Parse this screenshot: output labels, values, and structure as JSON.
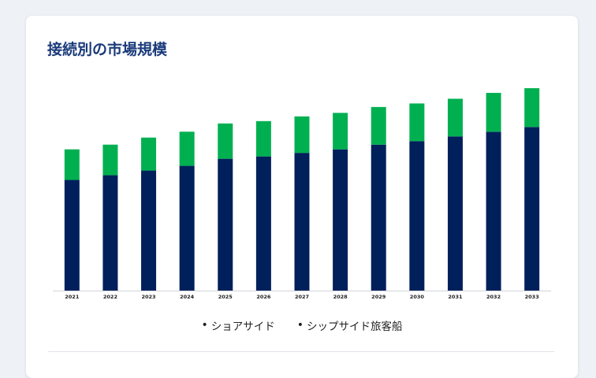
{
  "title": "接続別の市場規模",
  "colors": {
    "shore_side": "#00205b",
    "ship_side": "#00b050",
    "title": "#1a3a7a"
  },
  "chart_data": {
    "type": "bar",
    "stacked": true,
    "categories": [
      "2021",
      "2022",
      "2023",
      "2024",
      "2025",
      "2026",
      "2027",
      "2028",
      "2029",
      "2030",
      "2031",
      "2032",
      "2033"
    ],
    "series": [
      {
        "name": "ショアサイド",
        "values": [
          4.7,
          4.9,
          5.1,
          5.3,
          5.6,
          5.7,
          5.85,
          6.0,
          6.2,
          6.35,
          6.55,
          6.75,
          6.95
        ],
        "color": "#00205b"
      },
      {
        "name": "シップサイド旅客船",
        "values": [
          1.3,
          1.3,
          1.4,
          1.45,
          1.5,
          1.5,
          1.55,
          1.55,
          1.6,
          1.6,
          1.6,
          1.65,
          1.65
        ],
        "color": "#00b050"
      }
    ],
    "ylim": [
      0,
      9
    ],
    "xlabel": "",
    "ylabel": "",
    "grid": false,
    "legend": "bottom-center"
  },
  "legend_items": [
    "ショアサイド",
    "シップサイド旅客船"
  ]
}
